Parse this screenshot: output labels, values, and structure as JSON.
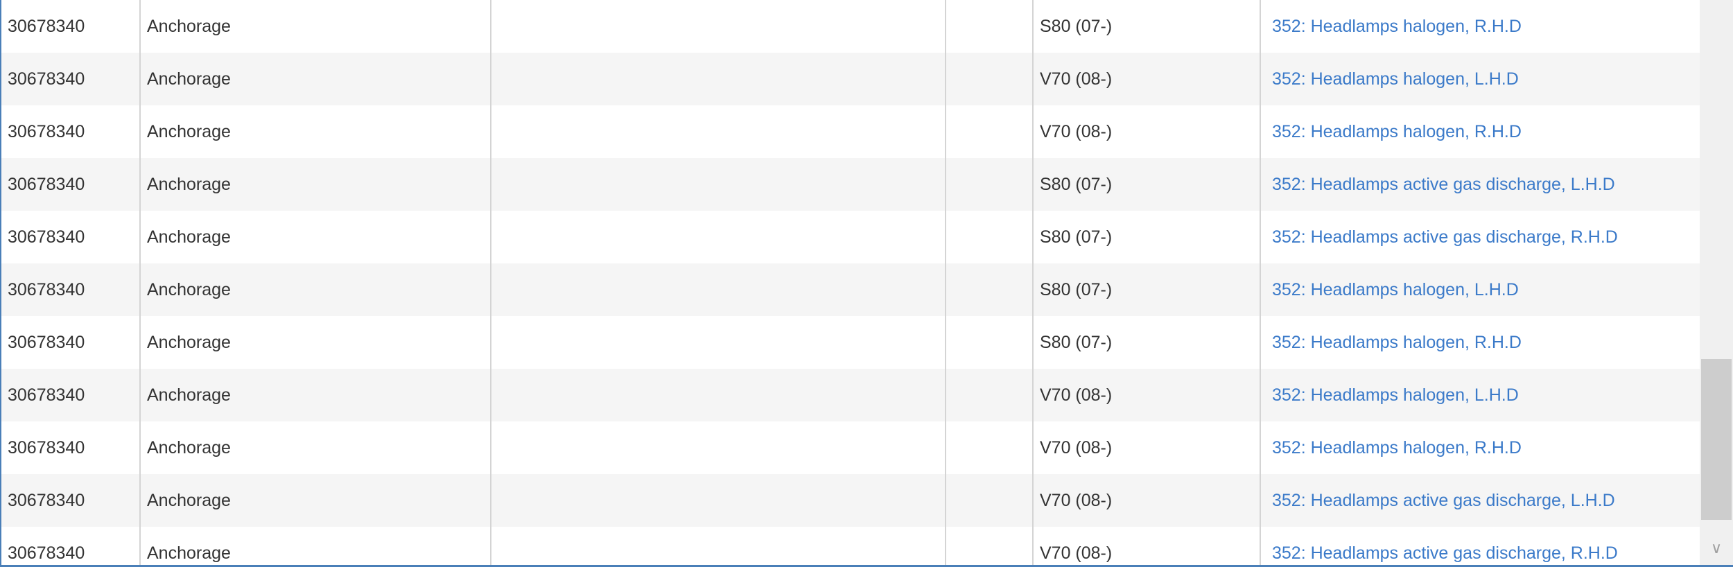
{
  "colors": {
    "link": "#3b7ac9",
    "border_accent": "#4a7fb8",
    "alt_row": "#f5f5f5"
  },
  "rows": [
    {
      "part": "30678340",
      "name": "Anchorage",
      "c3": "",
      "c4": "",
      "model": "S80 (07-)",
      "ref": "352: Headlamps halogen, R.H.D"
    },
    {
      "part": "30678340",
      "name": "Anchorage",
      "c3": "",
      "c4": "",
      "model": "V70 (08-)",
      "ref": "352: Headlamps halogen, L.H.D"
    },
    {
      "part": "30678340",
      "name": "Anchorage",
      "c3": "",
      "c4": "",
      "model": "V70 (08-)",
      "ref": "352: Headlamps halogen, R.H.D"
    },
    {
      "part": "30678340",
      "name": "Anchorage",
      "c3": "",
      "c4": "",
      "model": "S80 (07-)",
      "ref": "352: Headlamps active gas discharge, L.H.D"
    },
    {
      "part": "30678340",
      "name": "Anchorage",
      "c3": "",
      "c4": "",
      "model": "S80 (07-)",
      "ref": "352: Headlamps active gas discharge, R.H.D"
    },
    {
      "part": "30678340",
      "name": "Anchorage",
      "c3": "",
      "c4": "",
      "model": "S80 (07-)",
      "ref": "352: Headlamps halogen, L.H.D"
    },
    {
      "part": "30678340",
      "name": "Anchorage",
      "c3": "",
      "c4": "",
      "model": "S80 (07-)",
      "ref": "352: Headlamps halogen, R.H.D"
    },
    {
      "part": "30678340",
      "name": "Anchorage",
      "c3": "",
      "c4": "",
      "model": "V70 (08-)",
      "ref": "352: Headlamps halogen, L.H.D"
    },
    {
      "part": "30678340",
      "name": "Anchorage",
      "c3": "",
      "c4": "",
      "model": "V70 (08-)",
      "ref": "352: Headlamps halogen, R.H.D"
    },
    {
      "part": "30678340",
      "name": "Anchorage",
      "c3": "",
      "c4": "",
      "model": "V70 (08-)",
      "ref": "352: Headlamps active gas discharge, L.H.D"
    },
    {
      "part": "30678340",
      "name": "Anchorage",
      "c3": "",
      "c4": "",
      "model": "V70 (08-)",
      "ref": "352: Headlamps active gas discharge, R.H.D"
    }
  ],
  "scrollbar": {
    "down_arrow_icon": "chevron-down-icon",
    "down_arrow_glyph": "∨"
  }
}
